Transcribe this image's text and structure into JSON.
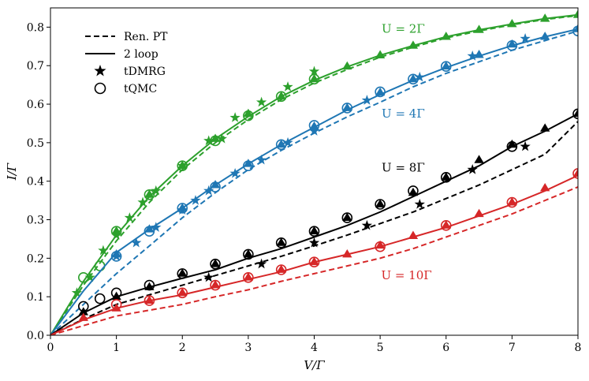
{
  "chart_data": {
    "type": "line",
    "xlabel": "V/Γ",
    "ylabel": "I/Γ",
    "xlim": [
      0,
      8
    ],
    "ylim": [
      0,
      0.85
    ],
    "xticks": [
      "0",
      "1",
      "2",
      "3",
      "4",
      "5",
      "6",
      "7",
      "8"
    ],
    "yticks": [
      "0.0",
      "0.1",
      "0.2",
      "0.3",
      "0.4",
      "0.5",
      "0.6",
      "0.7",
      "0.8"
    ],
    "legend": {
      "placement": "top-left",
      "entries": [
        {
          "label": "Ren. PT",
          "style": "dashed-line"
        },
        {
          "label": "2 loop",
          "style": "solid-line"
        },
        {
          "label": "tDMRG",
          "style": "star"
        },
        {
          "label": "tQMC",
          "style": "open-circle"
        }
      ]
    },
    "series": [
      {
        "name": "U = 2Γ",
        "color": "#2ca02c",
        "renpt": [
          [
            0,
            0
          ],
          [
            0.5,
            0.13
          ],
          [
            1,
            0.245
          ],
          [
            1.5,
            0.345
          ],
          [
            2,
            0.43
          ],
          [
            2.5,
            0.5
          ],
          [
            3,
            0.56
          ],
          [
            3.5,
            0.612
          ],
          [
            4,
            0.655
          ],
          [
            4.5,
            0.69
          ],
          [
            5,
            0.722
          ],
          [
            5.5,
            0.748
          ],
          [
            6,
            0.772
          ],
          [
            6.5,
            0.79
          ],
          [
            7,
            0.806
          ],
          [
            7.5,
            0.82
          ],
          [
            8,
            0.83
          ]
        ],
        "loop2": [
          [
            0,
            0
          ],
          [
            0.5,
            0.14
          ],
          [
            1,
            0.26
          ],
          [
            1.5,
            0.36
          ],
          [
            2,
            0.44
          ],
          [
            2.5,
            0.51
          ],
          [
            3,
            0.568
          ],
          [
            3.5,
            0.62
          ],
          [
            4,
            0.662
          ],
          [
            4.5,
            0.697
          ],
          [
            5,
            0.727
          ],
          [
            5.5,
            0.752
          ],
          [
            6,
            0.775
          ],
          [
            6.5,
            0.793
          ],
          [
            7,
            0.808
          ],
          [
            7.5,
            0.822
          ],
          [
            8,
            0.832
          ]
        ],
        "tdmrg": [
          [
            0.4,
            0.11
          ],
          [
            0.6,
            0.15
          ],
          [
            0.8,
            0.22
          ],
          [
            1.0,
            0.26
          ],
          [
            1.2,
            0.305
          ],
          [
            1.4,
            0.345
          ],
          [
            1.6,
            0.375
          ],
          [
            2.0,
            0.44
          ],
          [
            2.4,
            0.505
          ],
          [
            2.6,
            0.51
          ],
          [
            2.8,
            0.565
          ],
          [
            3.2,
            0.605
          ],
          [
            3.6,
            0.645
          ],
          [
            4.0,
            0.685
          ]
        ],
        "tqmc": [
          [
            0.5,
            0.15
          ],
          [
            0.75,
            0.18
          ],
          [
            1.0,
            0.27
          ],
          [
            1.5,
            0.365
          ],
          [
            2.0,
            0.44
          ],
          [
            2.5,
            0.505
          ],
          [
            3.0,
            0.57
          ],
          [
            3.5,
            0.62
          ],
          [
            4.0,
            0.665
          ]
        ],
        "tri": [
          [
            1.0,
            0.27
          ],
          [
            1.5,
            0.365
          ],
          [
            2.0,
            0.44
          ],
          [
            2.5,
            0.51
          ],
          [
            3.0,
            0.575
          ],
          [
            3.5,
            0.62
          ],
          [
            4.0,
            0.665
          ],
          [
            4.5,
            0.698
          ],
          [
            5.0,
            0.727
          ],
          [
            5.5,
            0.752
          ],
          [
            6.0,
            0.775
          ],
          [
            6.5,
            0.793
          ],
          [
            7.0,
            0.808
          ],
          [
            7.5,
            0.822
          ],
          [
            8.0,
            0.832
          ]
        ]
      },
      {
        "name": "U = 4Γ",
        "color": "#1f77b4",
        "renpt": [
          [
            0,
            0
          ],
          [
            0.5,
            0.08
          ],
          [
            1,
            0.16
          ],
          [
            1.5,
            0.232
          ],
          [
            2,
            0.305
          ],
          [
            2.5,
            0.37
          ],
          [
            3,
            0.43
          ],
          [
            3.5,
            0.48
          ],
          [
            4,
            0.525
          ],
          [
            4.5,
            0.567
          ],
          [
            5,
            0.605
          ],
          [
            5.5,
            0.645
          ],
          [
            6,
            0.68
          ],
          [
            6.5,
            0.71
          ],
          [
            7,
            0.74
          ],
          [
            7.5,
            0.765
          ],
          [
            8,
            0.79
          ]
        ],
        "loop2": [
          [
            0,
            0
          ],
          [
            0.5,
            0.115
          ],
          [
            1,
            0.215
          ],
          [
            1.5,
            0.275
          ],
          [
            2,
            0.33
          ],
          [
            2.5,
            0.39
          ],
          [
            3,
            0.445
          ],
          [
            3.5,
            0.495
          ],
          [
            4,
            0.54
          ],
          [
            4.5,
            0.585
          ],
          [
            5,
            0.625
          ],
          [
            5.5,
            0.662
          ],
          [
            6,
            0.695
          ],
          [
            6.5,
            0.725
          ],
          [
            7,
            0.752
          ],
          [
            7.5,
            0.775
          ],
          [
            8,
            0.795
          ]
        ],
        "tdmrg": [
          [
            1.0,
            0.205
          ],
          [
            1.3,
            0.24
          ],
          [
            1.6,
            0.28
          ],
          [
            2.0,
            0.325
          ],
          [
            2.2,
            0.35
          ],
          [
            2.4,
            0.375
          ],
          [
            2.8,
            0.42
          ],
          [
            3.2,
            0.455
          ],
          [
            3.6,
            0.5
          ],
          [
            4.0,
            0.53
          ],
          [
            4.8,
            0.61
          ],
          [
            5.6,
            0.67
          ],
          [
            6.4,
            0.725
          ],
          [
            7.2,
            0.77
          ]
        ],
        "tqmc": [
          [
            1.0,
            0.205
          ],
          [
            1.5,
            0.27
          ],
          [
            2.0,
            0.33
          ],
          [
            2.5,
            0.385
          ],
          [
            3.0,
            0.44
          ],
          [
            3.5,
            0.495
          ],
          [
            4.0,
            0.545
          ],
          [
            4.5,
            0.59
          ],
          [
            5.0,
            0.632
          ],
          [
            5.5,
            0.665
          ],
          [
            6.0,
            0.698
          ],
          [
            7.0,
            0.752
          ],
          [
            8.0,
            0.79
          ]
        ],
        "tri": [
          [
            1.0,
            0.21
          ],
          [
            1.5,
            0.275
          ],
          [
            2.0,
            0.33
          ],
          [
            2.5,
            0.39
          ],
          [
            3.0,
            0.445
          ],
          [
            3.5,
            0.495
          ],
          [
            4.0,
            0.542
          ],
          [
            4.5,
            0.59
          ],
          [
            5.0,
            0.63
          ],
          [
            5.5,
            0.665
          ],
          [
            6.0,
            0.698
          ],
          [
            6.5,
            0.728
          ],
          [
            7.0,
            0.755
          ],
          [
            7.5,
            0.775
          ],
          [
            8.0,
            0.795
          ]
        ]
      },
      {
        "name": "U = 8Γ",
        "color": "#000000",
        "renpt": [
          [
            0,
            0
          ],
          [
            0.5,
            0.042
          ],
          [
            1,
            0.08
          ],
          [
            1.5,
            0.105
          ],
          [
            2,
            0.13
          ],
          [
            2.5,
            0.155
          ],
          [
            3,
            0.18
          ],
          [
            3.5,
            0.205
          ],
          [
            4,
            0.232
          ],
          [
            4.5,
            0.26
          ],
          [
            5,
            0.29
          ],
          [
            5.5,
            0.32
          ],
          [
            6,
            0.355
          ],
          [
            6.5,
            0.39
          ],
          [
            7,
            0.43
          ],
          [
            7.5,
            0.47
          ],
          [
            8,
            0.555
          ]
        ],
        "loop2": [
          [
            0,
            0
          ],
          [
            0.5,
            0.058
          ],
          [
            1,
            0.1
          ],
          [
            1.5,
            0.125
          ],
          [
            2,
            0.148
          ],
          [
            2.5,
            0.17
          ],
          [
            3,
            0.2
          ],
          [
            3.5,
            0.225
          ],
          [
            4,
            0.255
          ],
          [
            4.5,
            0.285
          ],
          [
            5,
            0.32
          ],
          [
            5.5,
            0.36
          ],
          [
            6,
            0.4
          ],
          [
            6.5,
            0.44
          ],
          [
            7,
            0.49
          ],
          [
            7.5,
            0.53
          ],
          [
            8,
            0.575
          ]
        ],
        "tdmrg": [
          [
            2.4,
            0.15
          ],
          [
            3.2,
            0.185
          ],
          [
            4.0,
            0.24
          ],
          [
            4.8,
            0.285
          ],
          [
            5.6,
            0.34
          ],
          [
            6.4,
            0.43
          ],
          [
            7.2,
            0.49
          ]
        ],
        "tqmc": [
          [
            0.5,
            0.075
          ],
          [
            0.75,
            0.095
          ],
          [
            1.0,
            0.11
          ],
          [
            1.5,
            0.13
          ],
          [
            2.0,
            0.16
          ],
          [
            2.5,
            0.185
          ],
          [
            3.0,
            0.21
          ],
          [
            3.5,
            0.24
          ],
          [
            4.0,
            0.27
          ],
          [
            4.5,
            0.305
          ],
          [
            5.0,
            0.34
          ],
          [
            5.5,
            0.375
          ],
          [
            6.0,
            0.41
          ],
          [
            7.0,
            0.49
          ],
          [
            8.0,
            0.575
          ]
        ],
        "tri": [
          [
            0.5,
            0.06
          ],
          [
            1.0,
            0.1
          ],
          [
            1.5,
            0.125
          ],
          [
            2.0,
            0.16
          ],
          [
            2.5,
            0.185
          ],
          [
            3.0,
            0.21
          ],
          [
            3.5,
            0.24
          ],
          [
            4.0,
            0.27
          ],
          [
            4.5,
            0.305
          ],
          [
            5.0,
            0.34
          ],
          [
            5.5,
            0.37
          ],
          [
            6.0,
            0.41
          ],
          [
            6.5,
            0.455
          ],
          [
            7.0,
            0.495
          ],
          [
            7.5,
            0.537
          ],
          [
            8.0,
            0.575
          ]
        ]
      },
      {
        "name": "U = 10Γ",
        "color": "#d62728",
        "renpt": [
          [
            0,
            0
          ],
          [
            0.5,
            0.025
          ],
          [
            1,
            0.05
          ],
          [
            1.5,
            0.065
          ],
          [
            2,
            0.08
          ],
          [
            2.5,
            0.1
          ],
          [
            3,
            0.118
          ],
          [
            3.5,
            0.14
          ],
          [
            4,
            0.16
          ],
          [
            4.5,
            0.18
          ],
          [
            5,
            0.2
          ],
          [
            5.5,
            0.225
          ],
          [
            6,
            0.255
          ],
          [
            6.5,
            0.285
          ],
          [
            7,
            0.315
          ],
          [
            7.5,
            0.35
          ],
          [
            8,
            0.385
          ]
        ],
        "loop2": [
          [
            0,
            0
          ],
          [
            0.5,
            0.04
          ],
          [
            1,
            0.07
          ],
          [
            1.5,
            0.09
          ],
          [
            2,
            0.105
          ],
          [
            2.5,
            0.125
          ],
          [
            3,
            0.145
          ],
          [
            3.5,
            0.165
          ],
          [
            4,
            0.19
          ],
          [
            4.5,
            0.21
          ],
          [
            5,
            0.23
          ],
          [
            5.5,
            0.255
          ],
          [
            6,
            0.28
          ],
          [
            6.5,
            0.31
          ],
          [
            7,
            0.34
          ],
          [
            7.5,
            0.375
          ],
          [
            8,
            0.415
          ]
        ],
        "tdmrg": [],
        "tqmc": [
          [
            1.0,
            0.08
          ],
          [
            1.5,
            0.09
          ],
          [
            2.0,
            0.11
          ],
          [
            2.5,
            0.13
          ],
          [
            3.0,
            0.15
          ],
          [
            3.5,
            0.17
          ],
          [
            4.0,
            0.19
          ],
          [
            5.0,
            0.23
          ],
          [
            6.0,
            0.285
          ],
          [
            7.0,
            0.345
          ],
          [
            8.0,
            0.42
          ]
        ],
        "tri": [
          [
            0.5,
            0.045
          ],
          [
            1.0,
            0.07
          ],
          [
            1.5,
            0.09
          ],
          [
            2.0,
            0.11
          ],
          [
            2.5,
            0.13
          ],
          [
            3.0,
            0.15
          ],
          [
            3.5,
            0.17
          ],
          [
            4.0,
            0.19
          ],
          [
            4.5,
            0.21
          ],
          [
            5.0,
            0.233
          ],
          [
            5.5,
            0.258
          ],
          [
            6.0,
            0.285
          ],
          [
            6.5,
            0.315
          ],
          [
            7.0,
            0.345
          ],
          [
            7.5,
            0.382
          ],
          [
            8.0,
            0.42
          ]
        ]
      }
    ],
    "annotations": [
      {
        "text": "U = 2Γ",
        "x": 5.35,
        "y": 0.785,
        "color": "#2ca02c"
      },
      {
        "text": "U = 4Γ",
        "x": 5.35,
        "y": 0.565,
        "color": "#1f77b4"
      },
      {
        "text": "U = 8Γ",
        "x": 5.35,
        "y": 0.425,
        "color": "#000000"
      },
      {
        "text": "U = 10Γ",
        "x": 5.4,
        "y": 0.145,
        "color": "#d62728"
      }
    ]
  }
}
